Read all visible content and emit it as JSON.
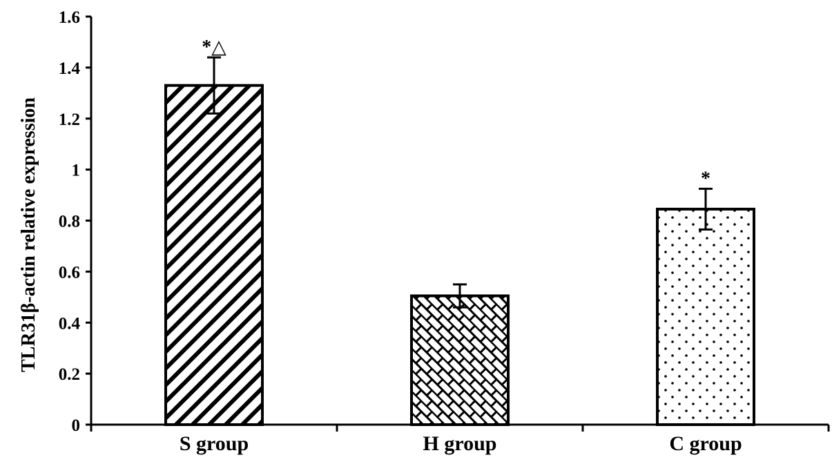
{
  "chart_data": {
    "type": "bar",
    "categories": [
      "S group",
      "H group",
      "C group"
    ],
    "values": [
      1.33,
      0.505,
      0.845
    ],
    "errors": [
      0.11,
      0.045,
      0.08
    ],
    "annotations": [
      "*△",
      "",
      "*"
    ],
    "patterns": [
      "diagonal-hatch",
      "brick-hatch",
      "dots"
    ],
    "ylabel": "TLR31β-actin relative expression",
    "xlabel": "",
    "ylim": [
      0,
      1.6
    ],
    "yticks": [
      0,
      0.2,
      0.4,
      0.6,
      0.8,
      1,
      1.2,
      1.4,
      1.6
    ],
    "ytick_labels": [
      "0",
      "0.2",
      "0.4",
      "0.6",
      "0.8",
      "1",
      "1.2",
      "1.4",
      "1.6"
    ],
    "grid": false,
    "colors": {
      "bar_fill": "#ffffff",
      "ink": "#000000"
    }
  }
}
